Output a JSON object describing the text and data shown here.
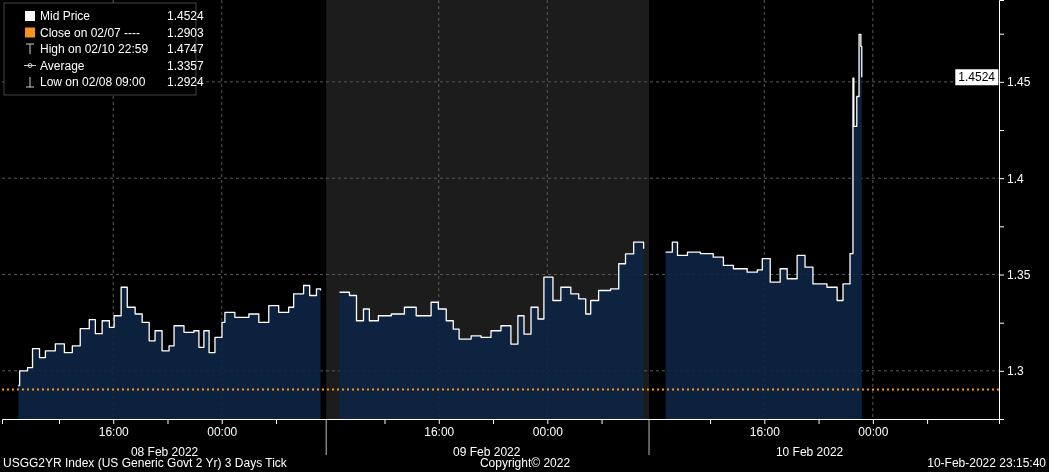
{
  "chart_data": {
    "type": "area",
    "x": [
      "2022-02-08T09:00",
      "2022-02-08T09:06",
      "2022-02-08T09:41",
      "2022-02-08T10:03",
      "2022-02-08T10:34",
      "2022-02-08T11:00",
      "2022-02-08T11:44",
      "2022-02-08T12:24",
      "2022-02-08T12:59",
      "2022-02-08T13:34",
      "2022-02-08T14:14",
      "2022-02-08T14:41",
      "2022-02-08T15:11",
      "2022-02-08T15:43",
      "2022-02-08T16:04",
      "2022-02-08T16:35",
      "2022-02-08T17:02",
      "2022-02-08T17:37",
      "2022-02-08T18:08",
      "2022-02-08T18:39",
      "2022-02-08T19:05",
      "2022-02-08T19:36",
      "2022-02-08T20:07",
      "2022-02-08T20:29",
      "2022-02-08T21:13",
      "2022-02-08T21:57",
      "2022-02-08T22:19",
      "2022-02-08T22:41",
      "2022-02-08T23:04",
      "2022-02-08T23:30",
      "2022-02-09T00:01",
      "2022-02-09T00:14",
      "2022-02-09T00:58",
      "2022-02-09T02:00",
      "2022-02-09T02:44",
      "2022-02-09T03:28",
      "2022-02-09T04:12",
      "2022-02-09T04:56",
      "2022-02-09T05:18",
      "2022-02-09T06:02",
      "2022-02-09T06:29",
      "2022-02-09T06:59",
      "2022-02-09T07:17",
      "2022-02-09T07:30",
      "2022-02-09T08:41",
      "2022-02-09T09:25",
      "2022-02-09T09:56",
      "2022-02-09T10:27",
      "2022-02-09T10:53",
      "2022-02-09T11:33",
      "2022-02-09T12:30",
      "2022-02-09T13:28",
      "2022-02-09T14:20",
      "2022-02-09T15:26",
      "2022-02-09T15:58",
      "2022-02-09T16:33",
      "2022-02-09T17:04",
      "2022-02-09T17:30",
      "2022-02-09T18:23",
      "2022-02-09T19:07",
      "2022-02-09T19:51",
      "2022-02-09T20:35",
      "2022-02-09T21:19",
      "2022-02-09T21:50",
      "2022-02-09T22:17",
      "2022-02-09T22:48",
      "2022-02-09T23:19",
      "2022-02-09T23:45",
      "2022-02-10T00:25",
      "2022-02-10T01:00",
      "2022-02-10T01:44",
      "2022-02-10T02:19",
      "2022-02-10T02:50",
      "2022-02-10T03:12",
      "2022-02-10T03:47",
      "2022-02-10T04:40",
      "2022-02-10T05:16",
      "2022-02-10T05:46",
      "2022-02-10T06:22",
      "2022-02-10T07:06",
      "2022-02-10T07:18",
      "2022-02-10T08:43",
      "2022-02-10T09:13",
      "2022-02-10T09:36",
      "2022-02-10T10:20",
      "2022-02-10T11:17",
      "2022-02-10T12:14",
      "2022-02-10T12:59",
      "2022-02-10T13:43",
      "2022-02-10T14:44",
      "2022-02-10T15:29",
      "2022-02-10T15:51",
      "2022-02-10T16:26",
      "2022-02-10T17:10",
      "2022-02-10T17:41",
      "2022-02-10T18:25",
      "2022-02-10T19:00",
      "2022-02-10T19:35",
      "2022-02-10T20:37",
      "2022-02-10T21:22",
      "2022-02-10T21:48",
      "2022-02-10T22:19",
      "2022-02-10T22:32",
      "2022-02-10T22:36",
      "2022-02-10T22:49",
      "2022-02-10T22:59",
      "2022-02-10T23:07",
      "2022-02-10T23:11"
    ],
    "series": [
      {
        "color": "#0c2545",
        "values": [
          1.2924,
          1.3,
          1.3017,
          1.3115,
          1.3069,
          1.3104,
          1.314,
          1.3095,
          1.313,
          1.3219,
          1.3266,
          1.3193,
          1.326,
          1.3226,
          1.3286,
          1.3434,
          1.333,
          1.3295,
          1.3252,
          1.3156,
          1.3208,
          1.3104,
          1.313,
          1.3234,
          1.32,
          1.3208,
          1.3122,
          1.3208,
          1.3095,
          1.3174,
          1.3252,
          1.3304,
          1.3278,
          1.3295,
          1.3252,
          1.3339,
          1.3304,
          1.333,
          1.34,
          1.3443,
          1.3391,
          1.3425,
          1.3417,
          null,
          1.3408,
          1.3391,
          1.326,
          1.3321,
          1.326,
          1.3286,
          1.3295,
          1.333,
          1.3286,
          1.3356,
          1.3321,
          1.326,
          1.3217,
          1.3165,
          1.3182,
          1.3174,
          1.3208,
          1.3234,
          1.3139,
          1.3286,
          1.3191,
          1.333,
          1.3269,
          1.3486,
          1.3365,
          1.3434,
          1.34,
          1.3374,
          1.3295,
          1.3365,
          1.3417,
          1.3425,
          1.3556,
          1.3607,
          1.3668,
          1.3634,
          null,
          1.3616,
          1.3668,
          1.3599,
          1.3616,
          1.3608,
          1.359,
          1.3547,
          1.353,
          1.3512,
          1.3524,
          1.3582,
          1.346,
          1.353,
          1.3478,
          1.3599,
          1.3538,
          1.3451,
          1.3434,
          1.3365,
          1.3451,
          1.3608,
          1.4519,
          1.4269,
          1.4424,
          1.4747,
          1.4684,
          1.4524
        ]
      },
      {
        "type": "step",
        "name": "Mid Price",
        "color": "#ffffff",
        "values": [
          1.2924,
          1.3,
          1.3017,
          1.3115,
          1.3069,
          1.3104,
          1.314,
          1.3095,
          1.313,
          1.3219,
          1.3266,
          1.3193,
          1.326,
          1.3226,
          1.3286,
          1.3434,
          1.333,
          1.3295,
          1.3252,
          1.3156,
          1.3208,
          1.3104,
          1.313,
          1.3234,
          1.32,
          1.3208,
          1.3122,
          1.3208,
          1.3095,
          1.3174,
          1.3252,
          1.3304,
          1.3278,
          1.3295,
          1.3252,
          1.3339,
          1.3304,
          1.333,
          1.34,
          1.3443,
          1.3391,
          1.3425,
          1.3417,
          null,
          1.3408,
          1.3391,
          1.326,
          1.3321,
          1.326,
          1.3286,
          1.3295,
          1.333,
          1.3286,
          1.3356,
          1.3321,
          1.326,
          1.3217,
          1.3165,
          1.3182,
          1.3174,
          1.3208,
          1.3234,
          1.3139,
          1.3286,
          1.3191,
          1.333,
          1.3269,
          1.3486,
          1.3365,
          1.3434,
          1.34,
          1.3374,
          1.3295,
          1.3365,
          1.3417,
          1.3425,
          1.3556,
          1.3607,
          1.3668,
          1.3634,
          null,
          1.3616,
          1.3668,
          1.3599,
          1.3616,
          1.3608,
          1.359,
          1.3547,
          1.353,
          1.3512,
          1.3524,
          1.3582,
          1.346,
          1.353,
          1.3478,
          1.3599,
          1.3538,
          1.3451,
          1.3434,
          1.3365,
          1.3451,
          1.3608,
          1.4519,
          1.4269,
          1.4424,
          1.4747,
          1.4684,
          1.4524
        ]
      }
    ],
    "xlim": [
      "2022-02-08T07:48",
      "2022-02-11T09:18"
    ],
    "xticks": [
      {
        "value": "2022-02-08T12:00",
        "label": null
      },
      {
        "value": "2022-02-08T16:00",
        "label": "16:00"
      },
      {
        "value": "2022-02-08T20:00",
        "label": null
      },
      {
        "value": "2022-02-09T00:00",
        "label": "00:00"
      },
      {
        "value": "2022-02-09T04:00",
        "label": null
      },
      {
        "value": "2022-02-09T12:00",
        "label": null
      },
      {
        "value": "2022-02-09T16:00",
        "label": "16:00"
      },
      {
        "value": "2022-02-09T20:00",
        "label": null
      },
      {
        "value": "2022-02-10T00:00",
        "label": "00:00"
      },
      {
        "value": "2022-02-10T04:00",
        "label": null
      },
      {
        "value": "2022-02-10T12:00",
        "label": null
      },
      {
        "value": "2022-02-10T16:00",
        "label": "16:00"
      },
      {
        "value": "2022-02-10T20:00",
        "label": null
      },
      {
        "value": "2022-02-11T00:00",
        "label": "00:00"
      },
      {
        "value": "2022-02-11T04:00",
        "label": null
      }
    ],
    "x2lim": [
      "2022-02-08T07:48",
      "2022-02-11T09:18"
    ],
    "x2ticks": [
      {
        "value": "2022-02-08T19:45",
        "label": "08 Feb 2022"
      },
      {
        "value": "2022-02-09T19:30",
        "label": "09 Feb 2022"
      },
      {
        "value": "2022-02-10T19:18",
        "label": "10 Feb 2022"
      }
    ],
    "ylim": [
      1.275,
      1.4925
    ],
    "yticks": [
      1.3,
      {
        "value": 1.325,
        "label": null
      },
      1.35,
      {
        "value": 1.375,
        "label": null
      },
      1.4,
      {
        "value": 1.425,
        "label": null
      },
      1.45,
      {
        "value": 1.475,
        "label": null
      }
    ],
    "bands": [
      {
        "axis": "x",
        "from": "2022-02-09T07:42",
        "to": "2022-02-10T07:30",
        "color": "#1c1c1c"
      }
    ],
    "ref_lines": [
      {
        "axis": "y",
        "value": 1.2903,
        "label": "Close on 02/07 ----",
        "color": "#f7941d",
        "line_style": "dotted"
      }
    ],
    "annotations": [
      "1.4524",
      "1.2903",
      "High on 02/10 22:59",
      "1.4747",
      "Average",
      "1.3357",
      "Low on 02/08 09:00",
      "1.2924",
      "USGG2YR Index (US Generic Govt 2 Yr) 3 Days  Tick",
      "Copyright© 2022",
      "10-Feb-2022 23:15:40",
      "1.4524"
    ],
    "grid": true,
    "legend": "top left"
  }
}
